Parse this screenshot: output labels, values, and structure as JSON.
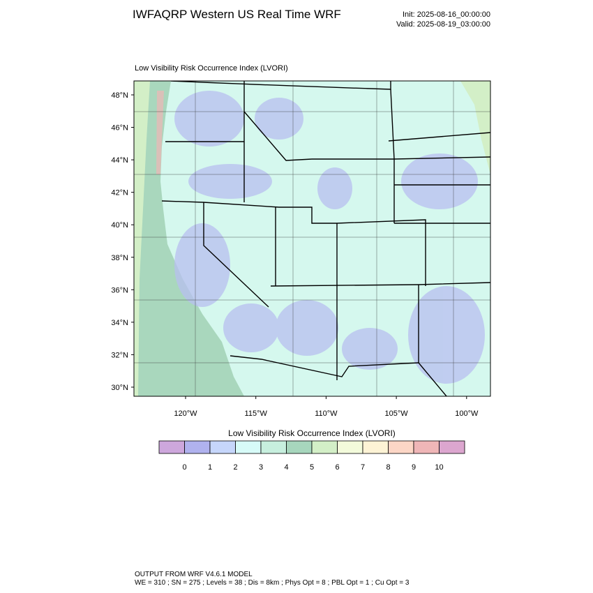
{
  "header": {
    "title": "IWFAQRP Western US Real Time WRF",
    "init": "Init: 2025-08-16_00:00:00",
    "valid": "Valid: 2025-08-19_03:00:00"
  },
  "map": {
    "title": "Low Visibility Risk Occurrence Index   (LVORI)",
    "lat_labels": [
      "48°N",
      "46°N",
      "44°N",
      "42°N",
      "40°N",
      "38°N",
      "36°N",
      "34°N",
      "32°N",
      "30°N"
    ],
    "lon_labels": [
      "120°W",
      "115°W",
      "110°W",
      "105°W",
      "100°W"
    ]
  },
  "colorbar": {
    "title": "Low Visibility Risk Occurrence Index  (LVORI)",
    "labels": [
      "0",
      "1",
      "2",
      "3",
      "4",
      "5",
      "6",
      "7",
      "8",
      "9",
      "10"
    ],
    "colors": [
      "#cda7dc",
      "#b0b2ee",
      "#c6d6fb",
      "#d7fbf8",
      "#c7efde",
      "#a7d6bd",
      "#d3efc7",
      "#f3fbdb",
      "#fdf3d5",
      "#fcd6c6",
      "#efb6b7",
      "#dca6cf"
    ]
  },
  "footer": {
    "lines": [
      "OUTPUT FROM WRF V4.6.1 MODEL",
      "WE = 310 ; SN = 275 ; Levels = 38 ; Dis = 8km ; Phys Opt = 8 ; PBL Opt = 1 ; Cu Opt = 3"
    ]
  }
}
